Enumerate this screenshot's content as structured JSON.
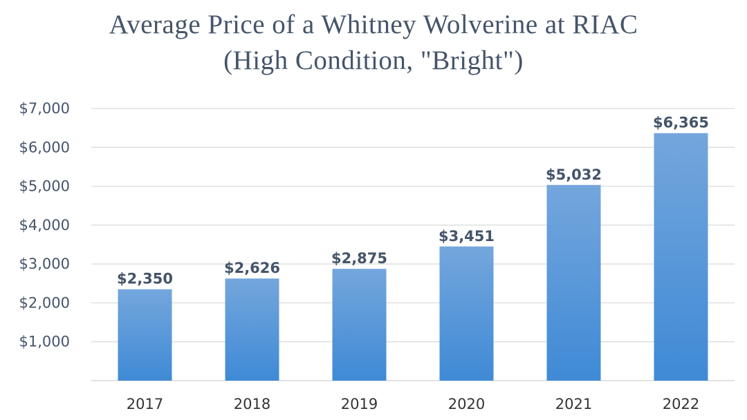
{
  "chart_data": {
    "type": "bar",
    "title": "Average Price of a Whitney Wolverine at RIAC",
    "subtitle": "(High Condition, \"Bright\")",
    "xlabel": "",
    "ylabel": "",
    "categories": [
      "2017",
      "2018",
      "2019",
      "2020",
      "2021",
      "2022"
    ],
    "values": [
      2350,
      2626,
      2875,
      3451,
      5032,
      6365
    ],
    "data_labels": [
      "$2,350",
      "$2,626",
      "$2,875",
      "$3,451",
      "$5,032",
      "$6,365"
    ],
    "ylim": [
      0,
      7000
    ],
    "y_ticks": [
      {
        "value": 1000,
        "label": "$1,000"
      },
      {
        "value": 2000,
        "label": "$2,000"
      },
      {
        "value": 3000,
        "label": "$3,000"
      },
      {
        "value": 4000,
        "label": "$4,000"
      },
      {
        "value": 5000,
        "label": "$5,000"
      },
      {
        "value": 6000,
        "label": "$6,000"
      },
      {
        "value": 7000,
        "label": "$7,000"
      }
    ],
    "grid": true,
    "legend": "none",
    "colors": {
      "bar_top": "#74a6dc",
      "bar_bottom": "#3f8ad6",
      "grid": "#d9d9d9",
      "title": "#44546a",
      "label": "#44546a"
    }
  }
}
